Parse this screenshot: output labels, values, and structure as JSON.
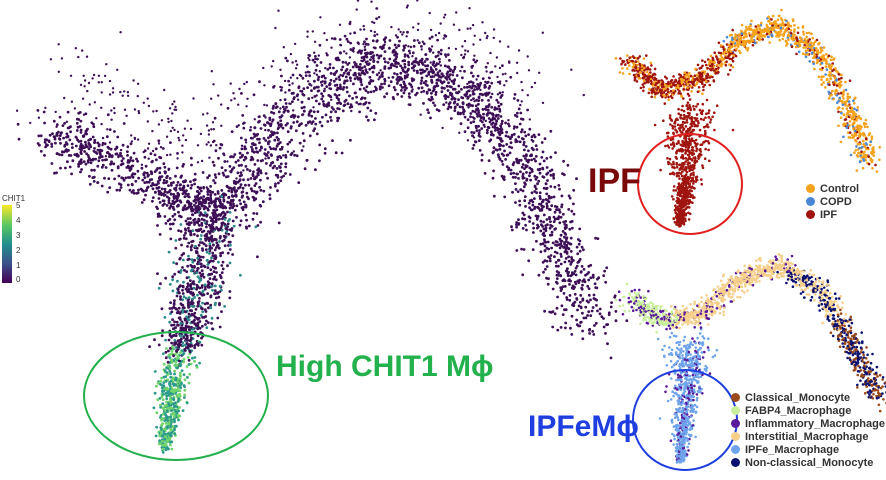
{
  "main_panel": {
    "colorbar": {
      "title": "CHIT1",
      "ticks": [
        "5",
        "4",
        "3",
        "2",
        "1",
        "0"
      ],
      "colors": [
        "#440154",
        "#3b528b",
        "#21908d",
        "#5dc863",
        "#fde725"
      ]
    },
    "annotation": "High CHIT1 Mϕ",
    "circle_color": "#22b14c",
    "point_color": "#3d0f56"
  },
  "ipf_panel": {
    "annotation": "IPF",
    "circle_color": "#e0201e",
    "legend": [
      {
        "label": "Control",
        "color": "#f5a21c"
      },
      {
        "label": "COPD",
        "color": "#4a86d6"
      },
      {
        "label": "IPF",
        "color": "#a0140f"
      }
    ]
  },
  "celltype_panel": {
    "annotation": "IPFeMϕ",
    "circle_color": "#1f3ee0",
    "legend": [
      {
        "label": "Classical_Monocyte",
        "color": "#9a4a1a"
      },
      {
        "label": "FABP4_Macrophage",
        "color": "#c9ef9d"
      },
      {
        "label": "Inflammatory_Macrophage",
        "color": "#5b1a9a"
      },
      {
        "label": "Interstitial_Macrophage",
        "color": "#f6cf8b"
      },
      {
        "label": "IPFe_Macrophage",
        "color": "#6fa4ec"
      },
      {
        "label": "Non-classical_Monocyte",
        "color": "#0a1170"
      }
    ]
  }
}
